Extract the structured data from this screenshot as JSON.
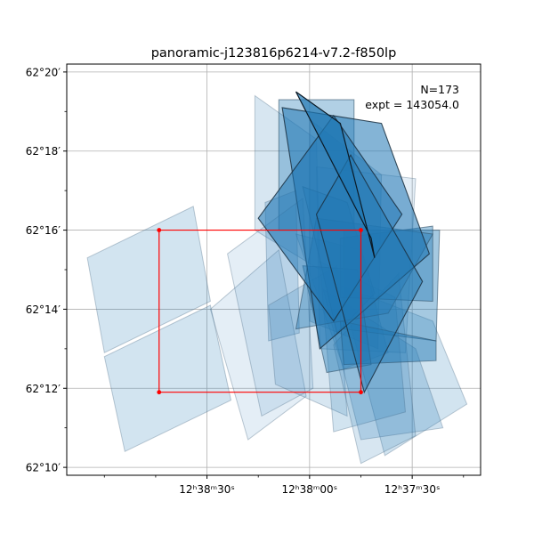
{
  "chart_data": {
    "type": "footprint-map",
    "title": "panoramic-j123816p6214-v7.2-f850lp",
    "xlabel": "",
    "ylabel": "",
    "grid": true,
    "x_unit": "arcsec",
    "y_unit": "arcmin",
    "xlim": [
      71,
      -50
    ],
    "ylim": [
      9.8,
      20.2
    ],
    "x_ticks": [
      {
        "value": 30,
        "text": "12ʰ38ᵐ30ˢ"
      },
      {
        "value": 0,
        "text": "12ʰ38ᵐ00ˢ"
      },
      {
        "value": -30,
        "text": "12ʰ37ᵐ30ˢ"
      }
    ],
    "x_minor_ticks": [
      60,
      45,
      15,
      -15,
      -45
    ],
    "y_ticks": [
      {
        "value": 10,
        "text": "62°10′"
      },
      {
        "value": 12,
        "text": "62°12′"
      },
      {
        "value": 14,
        "text": "62°14′"
      },
      {
        "value": 16,
        "text": "62°16′"
      },
      {
        "value": 18,
        "text": "62°18′"
      },
      {
        "value": 20,
        "text": "62°20′"
      }
    ],
    "y_minor_ticks": [
      11,
      13,
      15,
      17,
      19
    ],
    "annotation": {
      "line1": "N=173",
      "line2": "expt = 143054.0"
    },
    "highlight_box": {
      "x": [
        44,
        -15
      ],
      "y": [
        11.9,
        16.0
      ],
      "color": "#ff0000"
    },
    "footprint_color": "#1f77b4",
    "footprints": [
      {
        "corners": [
          [
            65,
            15.3
          ],
          [
            34,
            16.6
          ],
          [
            29,
            14.2
          ],
          [
            60,
            12.9
          ]
        ],
        "alpha": 0.2,
        "edge": "light"
      },
      {
        "corners": [
          [
            60,
            12.8
          ],
          [
            29,
            14.1
          ],
          [
            23,
            11.7
          ],
          [
            54,
            10.4
          ]
        ],
        "alpha": 0.2,
        "edge": "light"
      },
      {
        "corners": [
          [
            16,
            19.4
          ],
          [
            -2,
            18.3
          ],
          [
            -3,
            15.0
          ],
          [
            16,
            16.0
          ]
        ],
        "alpha": 0.18,
        "edge": "light"
      },
      {
        "corners": [
          [
            9,
            19.3
          ],
          [
            -13,
            19.3
          ],
          [
            -13,
            16.0
          ],
          [
            9,
            16.0
          ]
        ],
        "alpha": 0.35,
        "edge": "mid"
      },
      {
        "corners": [
          [
            13,
            16.7
          ],
          [
            4,
            17.0
          ],
          [
            3,
            13.4
          ],
          [
            12,
            13.2
          ]
        ],
        "alpha": 0.22,
        "edge": "light"
      },
      {
        "corners": [
          [
            -2,
            17.6
          ],
          [
            -31,
            17.3
          ],
          [
            -28,
            12.9
          ],
          [
            -3,
            13.0
          ]
        ],
        "alpha": 0.12,
        "edge": "light"
      },
      {
        "corners": [
          [
            0,
            18.8
          ],
          [
            -21,
            17.4
          ],
          [
            -20,
            13.0
          ],
          [
            0,
            13.7
          ]
        ],
        "alpha": 0.25,
        "edge": "light"
      },
      {
        "corners": [
          [
            4,
            15.9
          ],
          [
            -15,
            15.5
          ],
          [
            -23,
            12.9
          ],
          [
            -10,
            12.5
          ]
        ],
        "alpha": 0.2,
        "edge": "light"
      },
      {
        "corners": [
          [
            29,
            14.0
          ],
          [
            9,
            15.5
          ],
          [
            1,
            11.8
          ],
          [
            18,
            10.7
          ]
        ],
        "alpha": 0.12,
        "edge": "light"
      },
      {
        "corners": [
          [
            24,
            15.4
          ],
          [
            2,
            16.8
          ],
          [
            -1,
            12.0
          ],
          [
            14,
            11.3
          ]
        ],
        "alpha": 0.12,
        "edge": "light"
      },
      {
        "corners": [
          [
            12,
            14.1
          ],
          [
            -8,
            15.1
          ],
          [
            -11,
            11.3
          ],
          [
            10,
            12.1
          ]
        ],
        "alpha": 0.18,
        "edge": "light"
      },
      {
        "corners": [
          [
            -9,
            14.6
          ],
          [
            -36,
            13.7
          ],
          [
            -46,
            11.6
          ],
          [
            -22,
            10.3
          ]
        ],
        "alpha": 0.2,
        "edge": "light"
      },
      {
        "corners": [
          [
            -4,
            14.5
          ],
          [
            -31,
            13.0
          ],
          [
            -39,
            11.0
          ],
          [
            -15,
            10.7
          ]
        ],
        "alpha": 0.22,
        "edge": "light"
      },
      {
        "corners": [
          [
            -3,
            15.2
          ],
          [
            -25,
            14.3
          ],
          [
            -28,
            11.4
          ],
          [
            -7,
            10.9
          ]
        ],
        "alpha": 0.2,
        "edge": "light"
      },
      {
        "corners": [
          [
            -7,
            13.1
          ],
          [
            -26,
            14.9
          ],
          [
            -31,
            10.8
          ],
          [
            -15,
            10.1
          ]
        ],
        "alpha": 0.18,
        "edge": "light"
      },
      {
        "corners": [
          [
            2,
            17.1
          ],
          [
            -11,
            16.7
          ],
          [
            -19,
            14.4
          ],
          [
            -8,
            13.4
          ]
        ],
        "alpha": 0.3,
        "edge": "mid"
      },
      {
        "corners": [
          [
            -10,
            16.0
          ],
          [
            -38,
            16.0
          ],
          [
            -37,
            13.2
          ],
          [
            -10,
            13.5
          ]
        ],
        "alpha": 0.4,
        "edge": "mid"
      },
      {
        "corners": [
          [
            -9,
            13.7
          ],
          [
            -37,
            13.2
          ],
          [
            -37,
            12.7
          ],
          [
            -10,
            12.6
          ]
        ],
        "alpha": 0.5,
        "edge": "mid"
      },
      {
        "corners": [
          [
            -9,
            15.8
          ],
          [
            -36,
            16.1
          ],
          [
            -36,
            14.2
          ],
          [
            -9,
            14.3
          ]
        ],
        "alpha": 0.4,
        "edge": "mid"
      },
      {
        "corners": [
          [
            2,
            15.1
          ],
          [
            -14,
            15.0
          ],
          [
            -18,
            12.6
          ],
          [
            -5,
            12.4
          ]
        ],
        "alpha": 0.4,
        "edge": "mid"
      },
      {
        "corners": [
          [
            -2,
            16.3
          ],
          [
            -36,
            15.9
          ],
          [
            -23,
            13.9
          ],
          [
            4,
            13.5
          ]
        ],
        "alpha": 0.38,
        "edge": "mid"
      },
      {
        "corners": [
          [
            8,
            19.1
          ],
          [
            -21,
            18.7
          ],
          [
            -35,
            15.4
          ],
          [
            -3,
            13.0
          ]
        ],
        "alpha": 0.55,
        "edge": "dark"
      },
      {
        "corners": [
          [
            15,
            16.3
          ],
          [
            -7,
            18.9
          ],
          [
            -27,
            16.4
          ],
          [
            -7,
            13.7
          ]
        ],
        "alpha": 0.55,
        "edge": "dark"
      },
      {
        "corners": [
          [
            -2,
            16.4
          ],
          [
            -12,
            17.9
          ],
          [
            -33,
            14.7
          ],
          [
            -16,
            11.9
          ]
        ],
        "alpha": 0.5,
        "edge": "dark"
      },
      {
        "corners": [
          [
            4,
            19.5
          ],
          [
            -9,
            18.7
          ],
          [
            -19,
            15.3
          ],
          [
            -18,
            15.8
          ]
        ],
        "alpha": 0.7,
        "edge": "darkest"
      }
    ]
  }
}
